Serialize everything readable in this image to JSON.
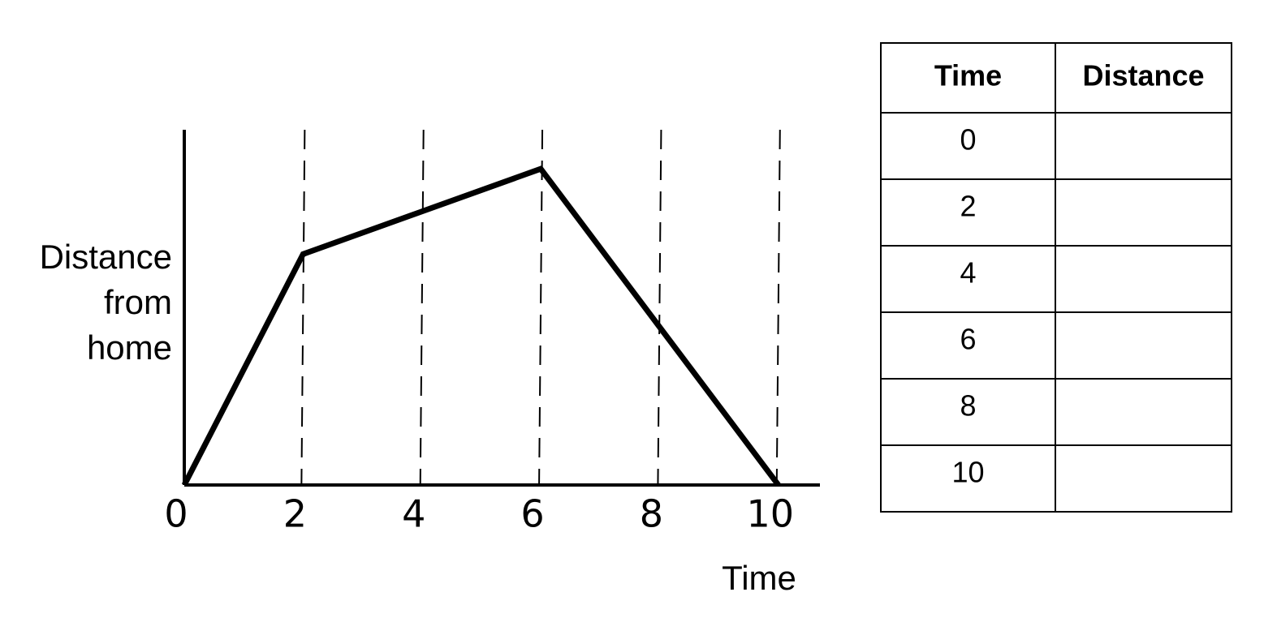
{
  "chart_data": {
    "type": "line",
    "y_label": [
      "Distance",
      "from",
      "home"
    ],
    "x_label": "Time",
    "x": [
      0,
      2,
      4,
      6,
      8,
      10
    ],
    "values": [
      0,
      65,
      77,
      89,
      44.5,
      0
    ],
    "color": "#000000",
    "xlim": [
      0,
      10.7
    ],
    "xticks": [
      0,
      2,
      4,
      6,
      8,
      10
    ],
    "ylim": [
      0,
      100
    ],
    "grid": true
  },
  "table": {
    "header": [
      "Time",
      "Distance"
    ],
    "rows": [
      [
        0
      ],
      [
        2
      ],
      [
        4
      ],
      [
        6
      ],
      [
        8
      ],
      [
        10
      ]
    ]
  }
}
